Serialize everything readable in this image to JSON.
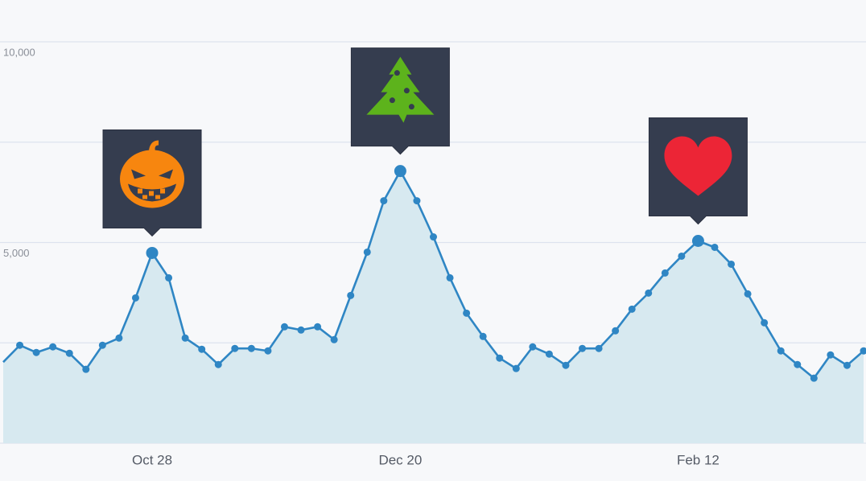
{
  "chart_data": {
    "type": "line",
    "categories": [
      null,
      null,
      null,
      null,
      null,
      null,
      null,
      null,
      null,
      "Oct 28",
      null,
      null,
      null,
      null,
      null,
      null,
      null,
      null,
      null,
      null,
      null,
      null,
      null,
      null,
      "Dec 20",
      null,
      null,
      null,
      null,
      null,
      null,
      null,
      null,
      null,
      null,
      null,
      null,
      null,
      null,
      null,
      null,
      null,
      "Feb 12",
      null,
      null,
      null,
      null,
      null,
      null,
      null,
      null,
      null,
      null
    ],
    "series": [
      {
        "color": "#2f86c4",
        "values": [
          2020,
          2440,
          2260,
          2400,
          2240,
          1840,
          2440,
          2620,
          3620,
          4740,
          4120,
          2620,
          2340,
          1960,
          2360,
          2360,
          2300,
          2900,
          2820,
          2900,
          2580,
          3680,
          4760,
          6040,
          6780,
          6040,
          5140,
          4120,
          3240,
          2660,
          2120,
          1860,
          2400,
          2220,
          1940,
          2360,
          2360,
          2800,
          3340,
          3740,
          4240,
          4660,
          5040,
          4880,
          4460,
          3720,
          3000,
          2300,
          1960,
          1620,
          2200,
          1940,
          2300
        ]
      }
    ],
    "area_color": "#d7e9f0",
    "ylim": [
      0,
      10000
    ],
    "yticks": [
      {
        "value": 5000,
        "label": "5,000"
      },
      {
        "value": 10000,
        "label": "10,000"
      }
    ],
    "ygrid": [
      0,
      2500,
      5000,
      7500,
      10000
    ],
    "highlight_points": [
      9,
      24,
      42
    ]
  }
}
